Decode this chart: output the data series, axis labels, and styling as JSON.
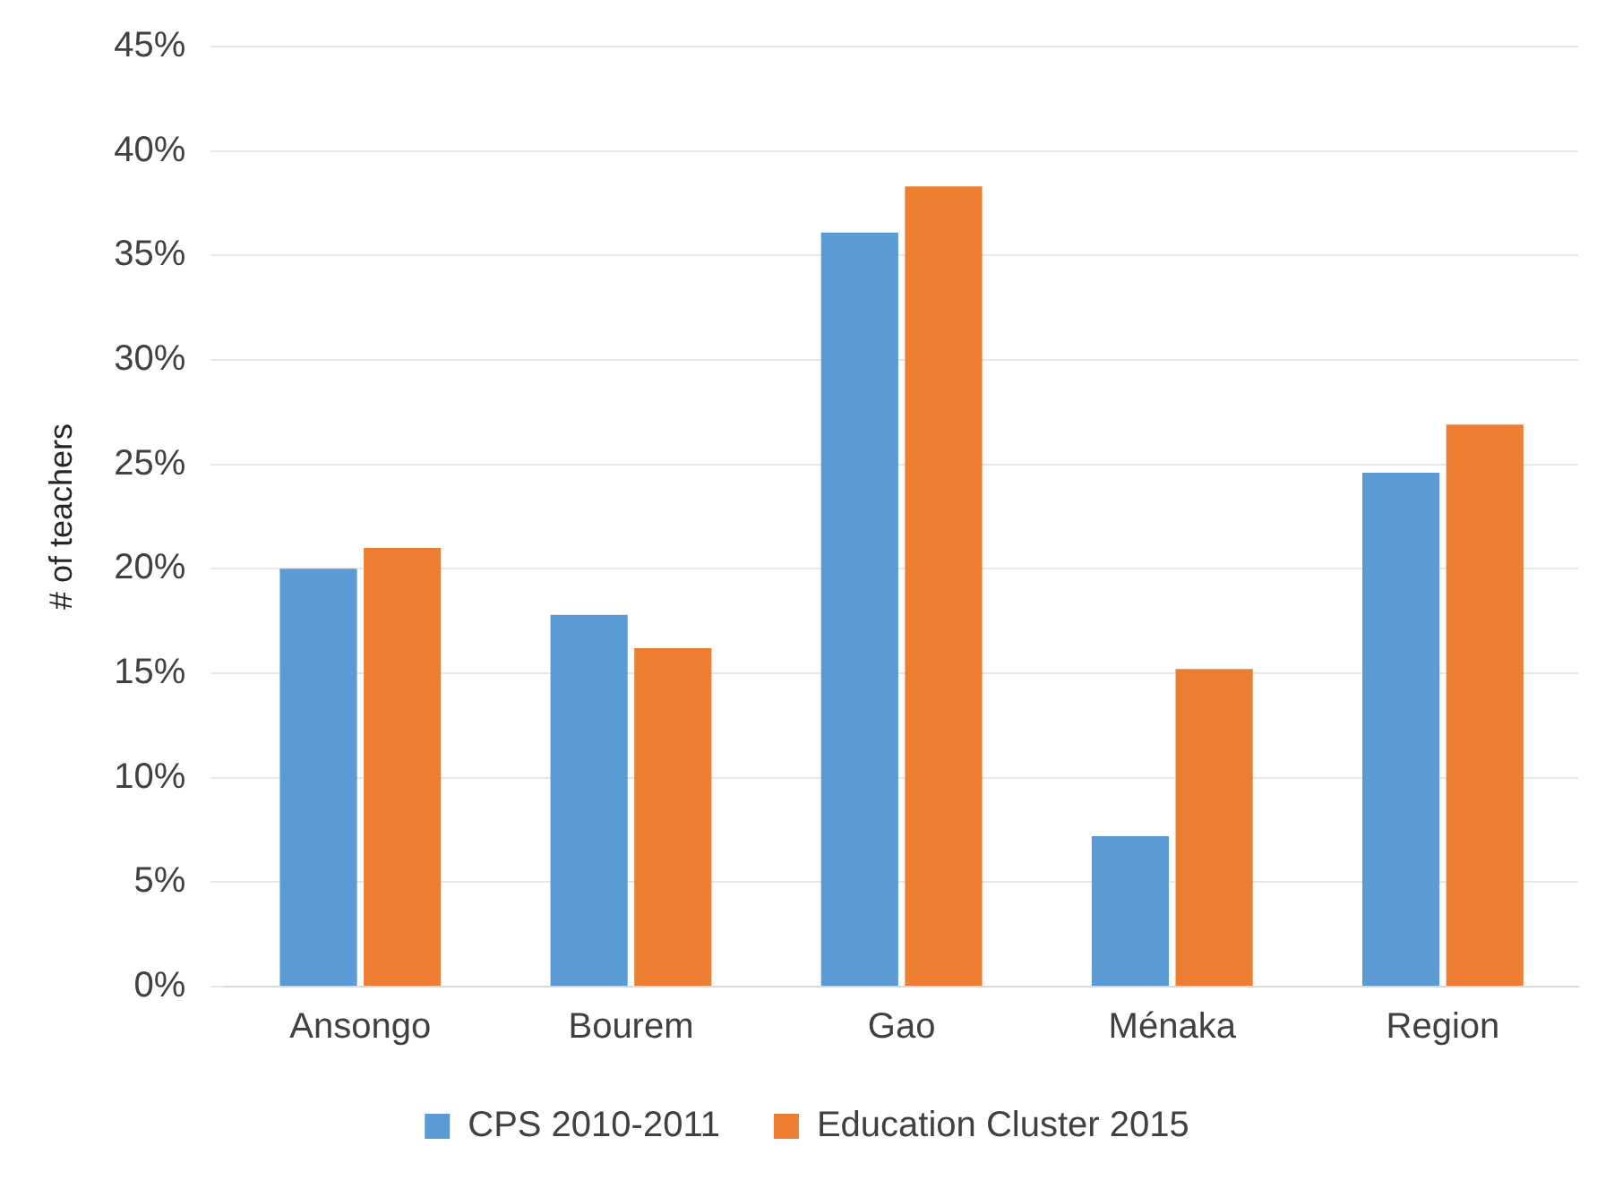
{
  "chart_data": {
    "type": "bar",
    "ylabel": "# of teachers",
    "categories": [
      "Ansongo",
      "Bourem",
      "Gao",
      "Ménaka",
      "Region"
    ],
    "series": [
      {
        "name": "CPS 2010-2011",
        "color": "#5b9bd5",
        "values": [
          20.0,
          17.8,
          36.1,
          7.2,
          24.6
        ]
      },
      {
        "name": "Education Cluster 2015",
        "color": "#ed7d31",
        "values": [
          21.0,
          16.2,
          38.3,
          15.2,
          26.9
        ]
      }
    ],
    "ylim": [
      0,
      45
    ],
    "yticks": [
      {
        "value": 0,
        "label": "0%"
      },
      {
        "value": 5,
        "label": "5%"
      },
      {
        "value": 10,
        "label": "10%"
      },
      {
        "value": 15,
        "label": "15%"
      },
      {
        "value": 20,
        "label": "20%"
      },
      {
        "value": 25,
        "label": "25%"
      },
      {
        "value": 30,
        "label": "30%"
      },
      {
        "value": 35,
        "label": "35%"
      },
      {
        "value": 40,
        "label": "40%"
      },
      {
        "value": 45,
        "label": "45%"
      }
    ],
    "grid": "y",
    "legend": "bottom"
  }
}
